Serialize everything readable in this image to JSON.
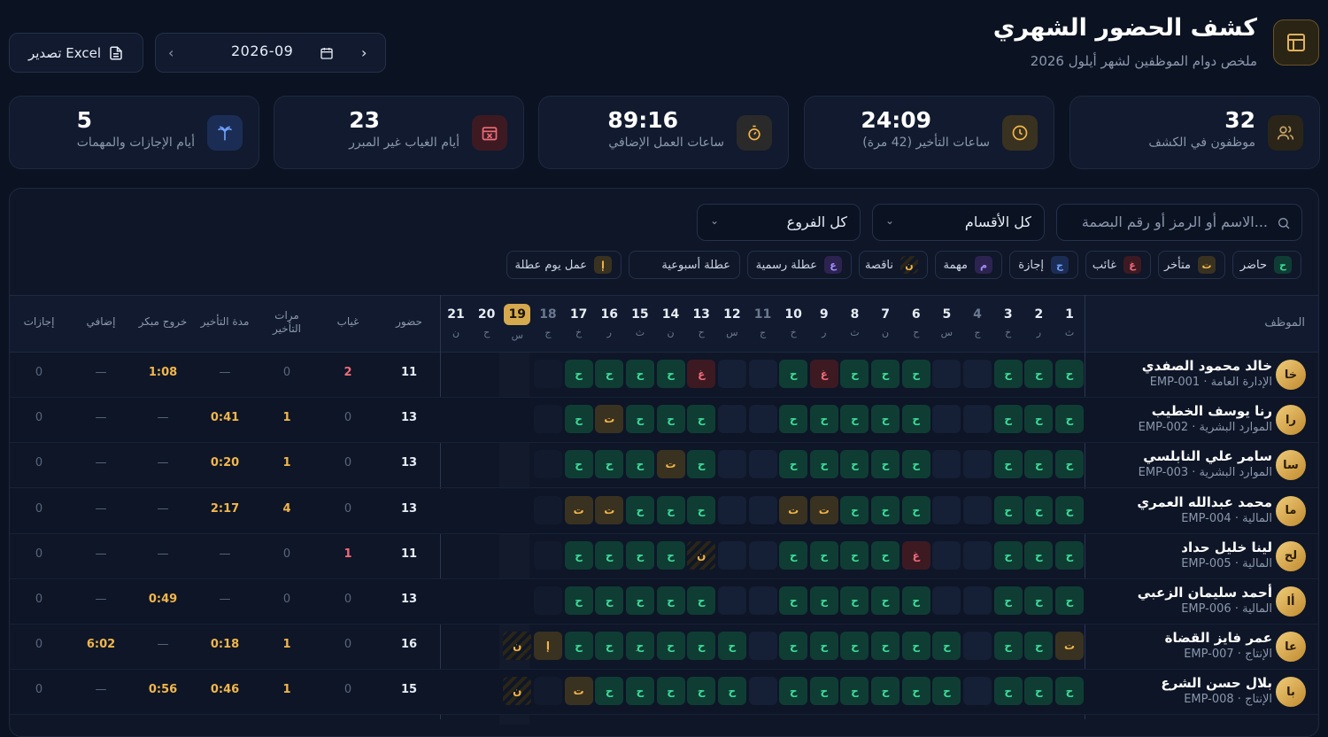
{
  "header": {
    "title": "كشف الحضور الشهري",
    "subtitle": "ملخص دوام الموظفين لشهر أيلول 2026",
    "month_value": "2026-09",
    "export_label": "تصدير Excel"
  },
  "stats": [
    {
      "value": "32",
      "label": "موظفون في الكشف",
      "icon": "users-icon",
      "color": "#c9a46a"
    },
    {
      "value": "24:09",
      "label": "ساعات التأخير (42 مرة)",
      "icon": "clock-alert-icon",
      "color": "#f3b64a"
    },
    {
      "value": "89:16",
      "label": "ساعات العمل الإضافي",
      "icon": "stopwatch-icon",
      "color": "#f3b64a"
    },
    {
      "value": "23",
      "label": "أيام الغياب غير المبرر",
      "icon": "calendar-x-icon",
      "color": "#f06b7a"
    },
    {
      "value": "5",
      "label": "أيام الإجازات والمهمات",
      "icon": "palm-tree-icon",
      "color": "#5b9cf5"
    }
  ],
  "filters": {
    "search_placeholder": "الاسم أو الرمز أو رقم البصمة...",
    "department_value": "كل الأقسام",
    "branch_value": "كل الفروع"
  },
  "legend": [
    {
      "badge": "ح",
      "label": "حاضر",
      "bg": "#0f3d34",
      "fg": "#3ddc97"
    },
    {
      "badge": "ت",
      "label": "متأخر",
      "bg": "#3a3220",
      "fg": "#f3b64a"
    },
    {
      "badge": "غ",
      "label": "غائب",
      "bg": "#3d1a22",
      "fg": "#f06b7a"
    },
    {
      "badge": "ج",
      "label": "إجازة",
      "bg": "#1c2d55",
      "fg": "#6ea2ff"
    },
    {
      "badge": "م",
      "label": "مهمة",
      "bg": "#2d2350",
      "fg": "#a58cff"
    },
    {
      "badge": "ن",
      "label": "ناقصة",
      "bg": "#2b2616",
      "fg": "#f3b64a"
    },
    {
      "badge": "ع",
      "label": "عطلة رسمية",
      "bg": "#2d2350",
      "fg": "#a58cff"
    },
    {
      "badge": "",
      "label": "عطلة أسبوعية",
      "bg": "#0f1729",
      "fg": "#cdd6e4"
    },
    {
      "badge": "إ",
      "label": "عمل يوم عطلة",
      "bg": "#3a3220",
      "fg": "#f3b64a"
    }
  ],
  "table": {
    "employee_header": "الموظف",
    "summary_headers": [
      "حضور",
      "غياب",
      "مرات التأخير",
      "مدة التأخير",
      "خروج مبكر",
      "إضافي",
      "إجازات"
    ],
    "days": [
      {
        "n": "1",
        "w": "ث"
      },
      {
        "n": "2",
        "w": "ر"
      },
      {
        "n": "3",
        "w": "خ"
      },
      {
        "n": "4",
        "w": "ج"
      },
      {
        "n": "5",
        "w": "س"
      },
      {
        "n": "6",
        "w": "ح"
      },
      {
        "n": "7",
        "w": "ن"
      },
      {
        "n": "8",
        "w": "ث"
      },
      {
        "n": "9",
        "w": "ر"
      },
      {
        "n": "10",
        "w": "خ"
      },
      {
        "n": "11",
        "w": "ج"
      },
      {
        "n": "12",
        "w": "س"
      },
      {
        "n": "13",
        "w": "ح"
      },
      {
        "n": "14",
        "w": "ن"
      },
      {
        "n": "15",
        "w": "ث"
      },
      {
        "n": "16",
        "w": "ر"
      },
      {
        "n": "17",
        "w": "خ"
      },
      {
        "n": "18",
        "w": "ج"
      },
      {
        "n": "19",
        "w": "س"
      },
      {
        "n": "20",
        "w": "ح"
      },
      {
        "n": "21",
        "w": "ن"
      }
    ],
    "rows": [
      {
        "avatar": "خا",
        "name": "خالد محمود الصفدي",
        "sub": "EMP-001 · الإدارة العامة",
        "cells": [
          "h",
          "h",
          "h",
          "e",
          "e",
          "h",
          "h",
          "h",
          "g",
          "h",
          "e",
          "e",
          "g",
          "h",
          "h",
          "h",
          "h",
          "e2",
          "x",
          "",
          ""
        ],
        "summary": [
          "11",
          "2",
          "0",
          "—",
          "1:08",
          "—",
          "0"
        ]
      },
      {
        "avatar": "را",
        "name": "رنا يوسف الخطيب",
        "sub": "EMP-002 · الموارد البشرية",
        "cells": [
          "h",
          "h",
          "h",
          "e",
          "e",
          "h",
          "h",
          "h",
          "h",
          "h",
          "e",
          "e",
          "h",
          "h",
          "h",
          "t",
          "h",
          "e2",
          "x",
          "",
          ""
        ],
        "summary": [
          "13",
          "0",
          "1",
          "0:41",
          "—",
          "—",
          "0"
        ]
      },
      {
        "avatar": "سا",
        "name": "سامر علي النابلسي",
        "sub": "EMP-003 · الموارد البشرية",
        "cells": [
          "h",
          "h",
          "h",
          "e",
          "e",
          "h",
          "h",
          "h",
          "h",
          "h",
          "e",
          "e",
          "h",
          "t",
          "h",
          "h",
          "h",
          "e2",
          "x",
          "",
          ""
        ],
        "summary": [
          "13",
          "0",
          "1",
          "0:20",
          "—",
          "—",
          "0"
        ]
      },
      {
        "avatar": "ما",
        "name": "محمد عبدالله العمري",
        "sub": "EMP-004 · المالية",
        "cells": [
          "h",
          "h",
          "h",
          "e",
          "e",
          "h",
          "h",
          "h",
          "t",
          "t",
          "e",
          "e",
          "h",
          "h",
          "h",
          "t",
          "t",
          "e2",
          "x",
          "",
          ""
        ],
        "summary": [
          "13",
          "0",
          "4",
          "2:17",
          "—",
          "—",
          "0"
        ]
      },
      {
        "avatar": "لح",
        "name": "لينا خليل حداد",
        "sub": "EMP-005 · المالية",
        "cells": [
          "h",
          "h",
          "h",
          "e",
          "e",
          "g",
          "h",
          "h",
          "h",
          "h",
          "e",
          "e",
          "n",
          "h",
          "h",
          "h",
          "h",
          "e2",
          "x",
          "",
          ""
        ],
        "summary": [
          "11",
          "1",
          "0",
          "—",
          "—",
          "—",
          "0"
        ]
      },
      {
        "avatar": "أا",
        "name": "أحمد سليمان الزعبي",
        "sub": "EMP-006 · المالية",
        "cells": [
          "h",
          "h",
          "h",
          "e",
          "e",
          "h",
          "h",
          "h",
          "h",
          "h",
          "e",
          "e",
          "h",
          "h",
          "h",
          "h",
          "h",
          "e2",
          "x",
          "",
          ""
        ],
        "summary": [
          "13",
          "0",
          "0",
          "—",
          "0:49",
          "—",
          "0"
        ]
      },
      {
        "avatar": "عا",
        "name": "عمر فايز القضاة",
        "sub": "EMP-007 · الإنتاج",
        "cells": [
          "t",
          "h",
          "h",
          "e",
          "h",
          "h",
          "h",
          "h",
          "h",
          "h",
          "e",
          "h",
          "h",
          "h",
          "hu",
          "h",
          "h",
          "a",
          "nn",
          "",
          ""
        ],
        "summary": [
          "16",
          "0",
          "1",
          "0:18",
          "—",
          "6:02",
          "0"
        ]
      },
      {
        "avatar": "با",
        "name": "بلال حسن الشرع",
        "sub": "EMP-008 · الإنتاج",
        "cells": [
          "h",
          "h",
          "h",
          "e",
          "h",
          "h",
          "h",
          "h",
          "h",
          "h",
          "e",
          "h",
          "h",
          "h",
          "h",
          "h",
          "t",
          "e2",
          "nn",
          "",
          ""
        ],
        "summary": [
          "15",
          "0",
          "1",
          "0:46",
          "0:56",
          "—",
          "0"
        ]
      }
    ]
  }
}
